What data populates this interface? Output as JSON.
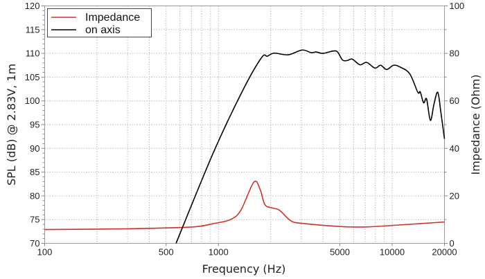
{
  "chart_data": {
    "type": "line",
    "title": "",
    "xlabel": "Frequency (Hz)",
    "ylabel": "SPL (dB) @ 2.83V, 1m",
    "y2label": "Impedance (Ohm)",
    "xscale": "log",
    "xlim": [
      100,
      20000
    ],
    "ylim": [
      70,
      120
    ],
    "y2lim": [
      0,
      100
    ],
    "xticks": [
      100,
      500,
      1000,
      5000,
      10000,
      20000
    ],
    "xtick_labels": [
      "100",
      "500",
      "1000",
      "5000",
      "10000",
      "20000"
    ],
    "yticks": [
      70,
      75,
      80,
      85,
      90,
      95,
      100,
      105,
      110,
      115,
      120
    ],
    "ytick_labels": [
      "70",
      "75",
      "80",
      "85",
      "90",
      "95",
      "100",
      "105",
      "110",
      "115",
      "120"
    ],
    "y2ticks": [
      0,
      20,
      40,
      60,
      80,
      100
    ],
    "y2tick_labels": [
      "0",
      "20",
      "40",
      "60",
      "80",
      "100"
    ],
    "grid": true,
    "legend": "top-left",
    "series": [
      {
        "name": "Impedance",
        "axis": "right",
        "color": "#d0302a",
        "x": [
          100,
          285,
          570,
          762,
          935,
          1172,
          1345,
          1600,
          1740,
          1850,
          2040,
          2250,
          2610,
          3060,
          5020,
          7030,
          11400,
          20000
        ],
        "y": [
          5.8,
          6.1,
          6.6,
          7.1,
          8.3,
          10.0,
          13.9,
          25.8,
          22.6,
          16.3,
          14.9,
          13.9,
          9.5,
          8.4,
          7.1,
          6.9,
          7.8,
          9.0
        ]
      },
      {
        "name": "on axis",
        "axis": "left",
        "color": "#000000",
        "x": [
          570,
          935,
          1385,
          1771,
          1910,
          2095,
          2520,
          3030,
          3424,
          3647,
          3990,
          4570,
          4850,
          5180,
          5520,
          5890,
          6520,
          7130,
          7960,
          8580,
          9290,
          10190,
          11140,
          12620,
          14050,
          14500,
          15170,
          15780,
          16600,
          17400,
          18300,
          19100,
          20000
        ],
        "y": [
          70,
          89.1,
          102.3,
          109.1,
          109.4,
          110.05,
          109.7,
          110.7,
          110.15,
          110.3,
          110.0,
          110.5,
          110.3,
          108.6,
          108.5,
          108.8,
          107.6,
          108.1,
          106.9,
          107.5,
          106.6,
          107.5,
          107.1,
          105.7,
          101.8,
          101.9,
          99.6,
          100.4,
          95.9,
          99.3,
          101.8,
          97.4,
          92.0
        ]
      }
    ]
  }
}
